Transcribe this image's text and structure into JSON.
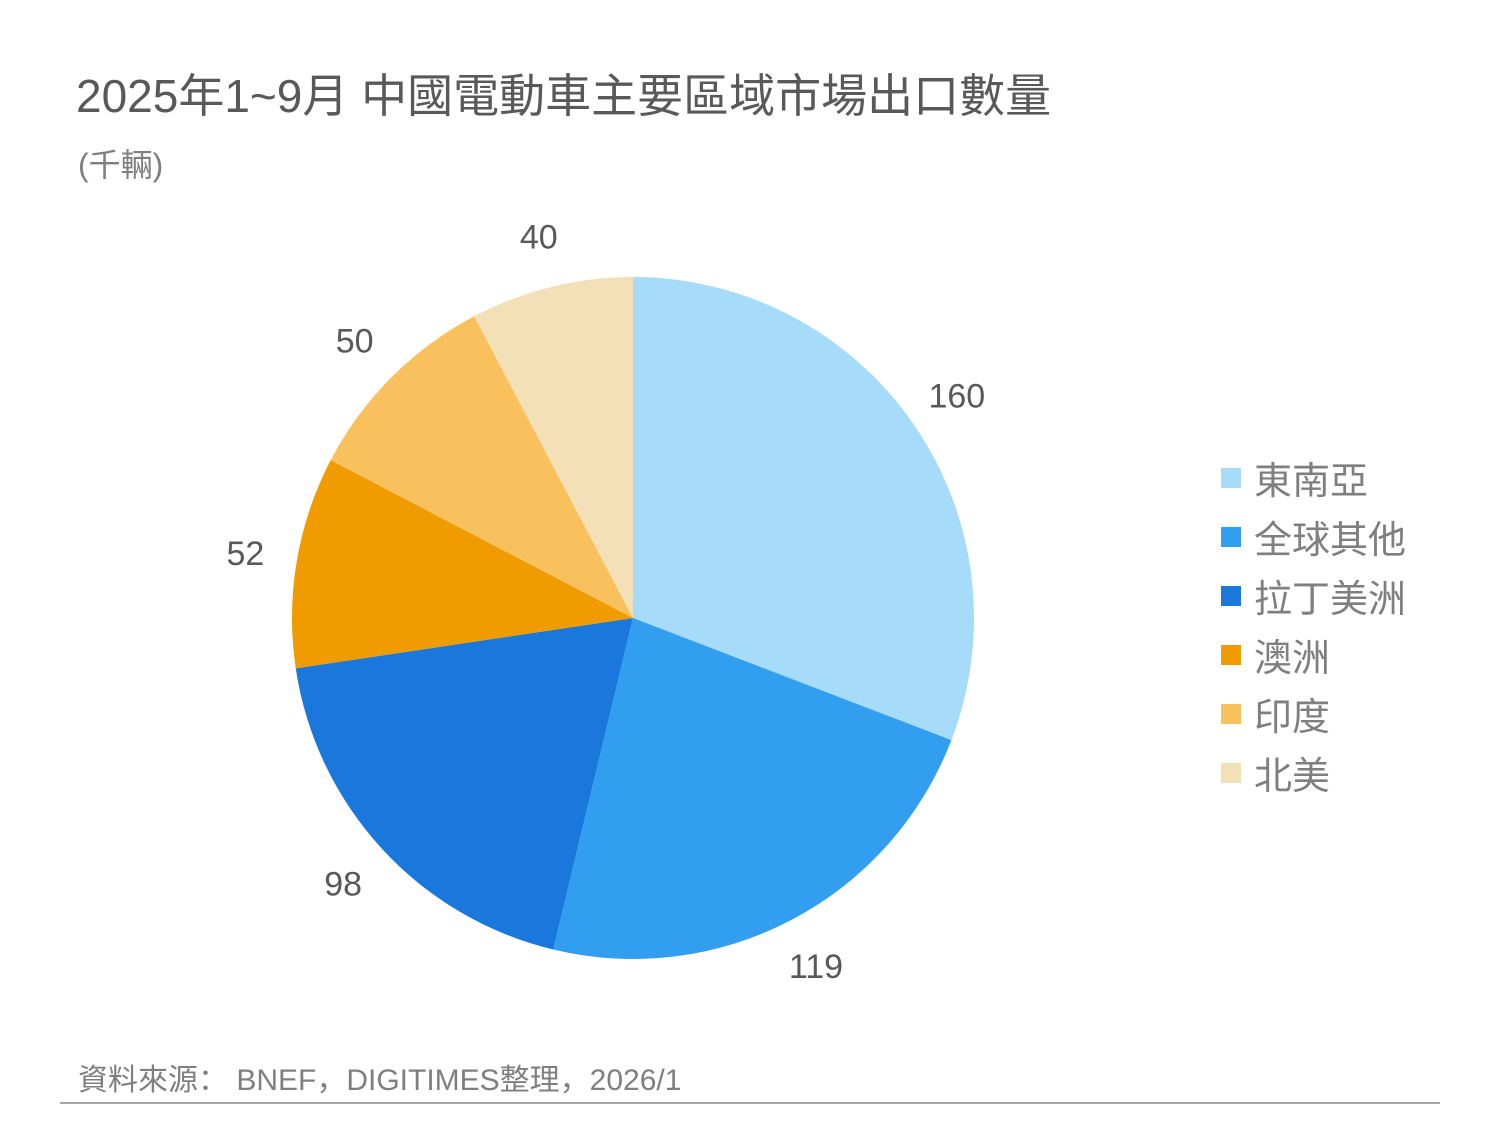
{
  "header": {
    "title": "2025年1~9月 中國電動車主要區域市場出口數量",
    "subtitle": "(千輛)"
  },
  "legend": [
    {
      "label": "東南亞",
      "color": "#a6dcfa"
    },
    {
      "label": "全球其他",
      "color": "#329eef"
    },
    {
      "label": "拉丁美洲",
      "color": "#1a78dc"
    },
    {
      "label": "澳洲",
      "color": "#f09b00"
    },
    {
      "label": "印度",
      "color": "#f8c15d"
    },
    {
      "label": "北美",
      "color": "#f3e0b7"
    }
  ],
  "footer": {
    "source": "資料來源： BNEF，DIGITIMES整理，2026/1"
  },
  "chart_data": {
    "type": "pie",
    "title": "2025年1~9月 中國電動車主要區域市場出口數量",
    "subtitle": "(千輛)",
    "unit": "千輛",
    "categories": [
      "東南亞",
      "全球其他",
      "拉丁美洲",
      "澳洲",
      "印度",
      "北美"
    ],
    "values": [
      160,
      119,
      98,
      52,
      50,
      40
    ],
    "colors": [
      "#a6dcfa",
      "#329eef",
      "#1a78dc",
      "#f09b00",
      "#f8c15d",
      "#f3e0b7"
    ],
    "start_angle": "12 o'clock, clockwise",
    "legend_position": "right",
    "data_labels": "outside, values"
  }
}
